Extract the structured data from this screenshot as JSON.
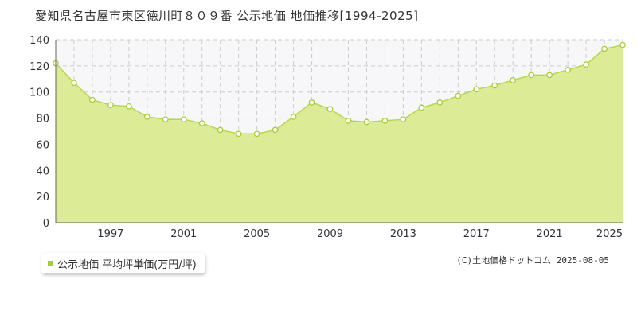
{
  "title": "愛知県名古屋市東区徳川町８０９番 公示地価 地価推移[1994-2025]",
  "legend_label": "公示地価 平均坪単価(万円/坪)",
  "copyright": "(C)土地価格ドットコム 2025-08-05",
  "colors": {
    "fill": "#dceb96",
    "line": "#b6d94a",
    "marker": "#a8cf32",
    "grid": "#cccccc"
  },
  "chart_data": {
    "type": "area",
    "x": [
      1994,
      1995,
      1996,
      1997,
      1998,
      1999,
      2000,
      2001,
      2002,
      2003,
      2004,
      2005,
      2006,
      2007,
      2008,
      2009,
      2010,
      2011,
      2012,
      2013,
      2014,
      2015,
      2016,
      2017,
      2018,
      2019,
      2020,
      2021,
      2022,
      2023,
      2024,
      2025
    ],
    "series": [
      {
        "name": "公示地価 平均坪単価(万円/坪)",
        "values": [
          122,
          107,
          94,
          90,
          89,
          81,
          79,
          79,
          76,
          71,
          68,
          68,
          71,
          81,
          92,
          87,
          78,
          77,
          78,
          79,
          88,
          92,
          97,
          102,
          105,
          109,
          113,
          113,
          117,
          121,
          133,
          136
        ]
      }
    ],
    "xticks": [
      1997,
      2001,
      2005,
      2009,
      2013,
      2017,
      2021,
      2025
    ],
    "yticks": [
      0,
      20,
      40,
      60,
      80,
      100,
      120,
      140
    ],
    "xlim": [
      1994,
      2025
    ],
    "ylim": [
      0,
      140
    ],
    "grid": true,
    "legend": "bottom-left"
  }
}
